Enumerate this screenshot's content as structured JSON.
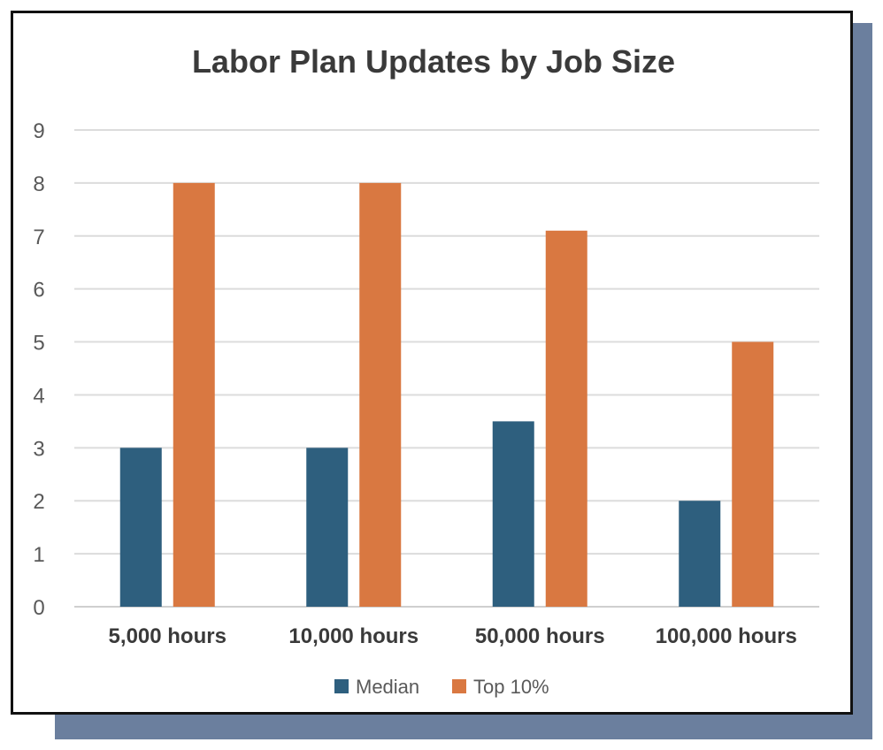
{
  "chart_data": {
    "type": "bar",
    "title": "Labor Plan Updates by Job Size",
    "xlabel": "",
    "ylabel": "",
    "categories": [
      "5,000 hours",
      "10,000 hours",
      "50,000 hours",
      "100,000 hours"
    ],
    "series": [
      {
        "name": "Median",
        "values": [
          3,
          3,
          3.5,
          2
        ],
        "color": "#2e5f7e"
      },
      {
        "name": "Top 10%",
        "values": [
          8,
          8,
          7.1,
          5
        ],
        "color": "#d97841"
      }
    ],
    "ylim": [
      0,
      9
    ],
    "yticks": [
      "0",
      "1",
      "2",
      "3",
      "4",
      "5",
      "6",
      "7",
      "8",
      "9"
    ],
    "grid": true,
    "legend_position": "bottom"
  }
}
